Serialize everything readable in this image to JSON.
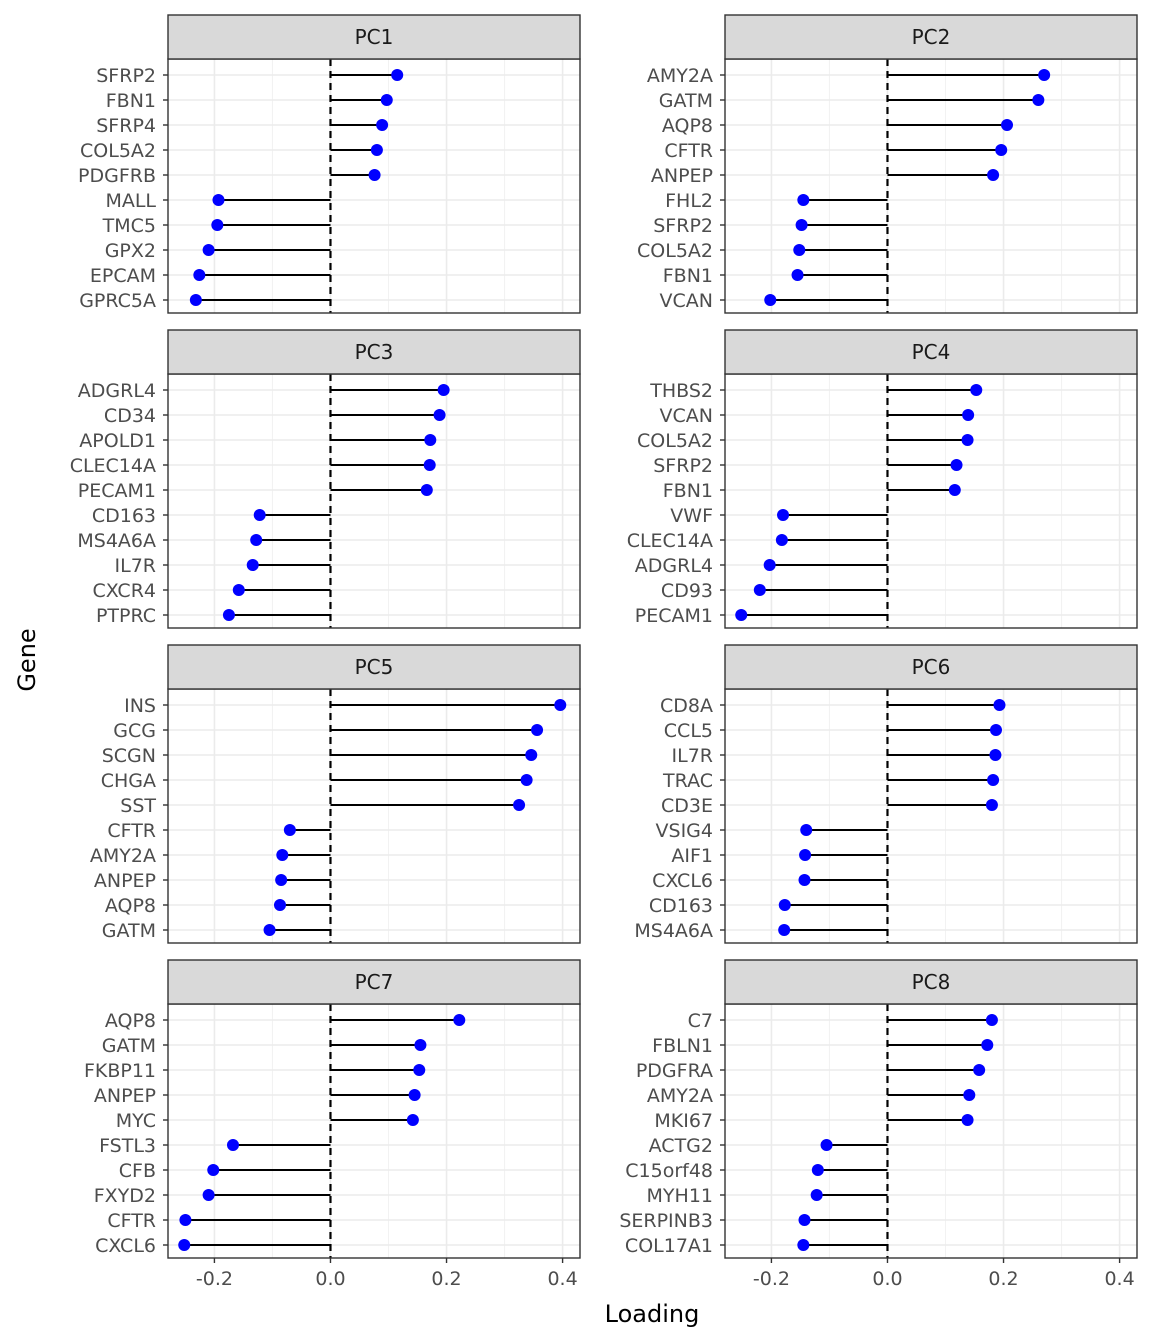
{
  "chart_data": {
    "type": "lollipop",
    "xlabel": "Loading",
    "ylabel": "Gene",
    "xlim": [
      -0.28,
      0.43
    ],
    "xticks": [
      -0.2,
      0.0,
      0.2,
      0.4
    ],
    "xtick_labels": [
      "-0.2",
      "0.0",
      "0.2",
      "0.4"
    ],
    "grid": true,
    "reference_line": {
      "x": 0.0,
      "style": "dashed"
    },
    "point_color": "#0000ff",
    "panels": [
      {
        "title": "PC1",
        "genes": [
          "SFRP2",
          "FBN1",
          "SFRP4",
          "COL5A2",
          "PDGFRB",
          "MALL",
          "TMC5",
          "GPX2",
          "EPCAM",
          "GPRC5A"
        ],
        "values": [
          0.115,
          0.097,
          0.089,
          0.08,
          0.076,
          -0.193,
          -0.195,
          -0.21,
          -0.226,
          -0.232
        ]
      },
      {
        "title": "PC2",
        "genes": [
          "AMY2A",
          "GATM",
          "AQP8",
          "CFTR",
          "ANPEP",
          "FHL2",
          "SFRP2",
          "COL5A2",
          "FBN1",
          "VCAN"
        ],
        "values": [
          0.27,
          0.26,
          0.206,
          0.196,
          0.182,
          -0.145,
          -0.148,
          -0.152,
          -0.155,
          -0.202
        ]
      },
      {
        "title": "PC3",
        "genes": [
          "ADGRL4",
          "CD34",
          "APOLD1",
          "CLEC14A",
          "PECAM1",
          "CD163",
          "MS4A6A",
          "IL7R",
          "CXCR4",
          "PTPRC"
        ],
        "values": [
          0.195,
          0.188,
          0.172,
          0.171,
          0.166,
          -0.122,
          -0.128,
          -0.134,
          -0.158,
          -0.175
        ]
      },
      {
        "title": "PC4",
        "genes": [
          "THBS2",
          "VCAN",
          "COL5A2",
          "SFRP2",
          "FBN1",
          "VWF",
          "CLEC14A",
          "ADGRL4",
          "CD93",
          "PECAM1"
        ],
        "values": [
          0.153,
          0.139,
          0.138,
          0.119,
          0.116,
          -0.18,
          -0.182,
          -0.203,
          -0.22,
          -0.252
        ]
      },
      {
        "title": "PC5",
        "genes": [
          "INS",
          "GCG",
          "SCGN",
          "CHGA",
          "SST",
          "CFTR",
          "AMY2A",
          "ANPEP",
          "AQP8",
          "GATM"
        ],
        "values": [
          0.396,
          0.356,
          0.346,
          0.338,
          0.325,
          -0.07,
          -0.083,
          -0.085,
          -0.087,
          -0.105
        ]
      },
      {
        "title": "PC6",
        "genes": [
          "CD8A",
          "CCL5",
          "IL7R",
          "TRAC",
          "CD3E",
          "VSIG4",
          "AIF1",
          "CXCL6",
          "CD163",
          "MS4A6A"
        ],
        "values": [
          0.193,
          0.187,
          0.186,
          0.182,
          0.18,
          -0.14,
          -0.142,
          -0.143,
          -0.177,
          -0.178
        ]
      },
      {
        "title": "PC7",
        "genes": [
          "AQP8",
          "GATM",
          "FKBP11",
          "ANPEP",
          "MYC",
          "FSTL3",
          "CFB",
          "FXYD2",
          "CFTR",
          "CXCL6"
        ],
        "values": [
          0.222,
          0.155,
          0.153,
          0.145,
          0.142,
          -0.168,
          -0.202,
          -0.21,
          -0.25,
          -0.252
        ]
      },
      {
        "title": "PC8",
        "genes": [
          "C7",
          "FBLN1",
          "PDGFRA",
          "AMY2A",
          "MKI67",
          "ACTG2",
          "C15orf48",
          "MYH11",
          "SERPINB3",
          "COL17A1"
        ],
        "values": [
          0.18,
          0.172,
          0.158,
          0.141,
          0.138,
          -0.105,
          -0.12,
          -0.122,
          -0.143,
          -0.145
        ]
      }
    ]
  }
}
